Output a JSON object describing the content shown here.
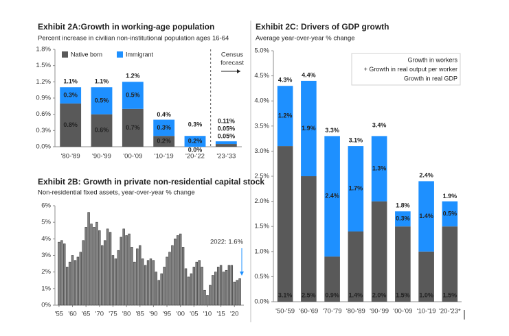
{
  "chart_data": [
    {
      "type": "bar",
      "title": "Exhibit 2A:Growth in working-age population",
      "subtitle": "Percent increase in civilian non-institutional population ages 16-64",
      "categories": [
        "'80-'89",
        "'90-'99",
        "'00-'09",
        "'10-'19",
        "'20-'22",
        "'23-'33"
      ],
      "series": [
        {
          "name": "Native born",
          "color": "#595959",
          "values": [
            0.8,
            0.6,
            0.7,
            0.2,
            0.0,
            0.05
          ],
          "value_labels": [
            "0.8%",
            "0.6%",
            "0.7%",
            "0.2%",
            "0.0%",
            "0.05%"
          ]
        },
        {
          "name": "Immigrant",
          "color": "#1e90ff",
          "values": [
            0.3,
            0.5,
            0.5,
            0.3,
            0.2,
            0.05
          ],
          "value_labels": [
            "0.3%",
            "0.5%",
            "0.5%",
            "0.3%",
            "0.2%",
            "0.05%"
          ]
        }
      ],
      "totals": {
        "color": "#ed7d31",
        "values": [
          1.1,
          1.1,
          1.2,
          0.4,
          0.3,
          0.11
        ],
        "value_labels": [
          "1.1%",
          "1.1%",
          "1.2%",
          "0.4%",
          "0.3%",
          "0.11%"
        ]
      },
      "annotation": [
        "Census",
        "forecast"
      ],
      "ylim": [
        0,
        1.8
      ],
      "yticks": [
        {
          "value": 0,
          "label": "0.0%"
        },
        {
          "value": 0.3,
          "label": "0.3%"
        },
        {
          "value": 0.6,
          "label": "0.6%"
        },
        {
          "value": 0.9,
          "label": "0.9%"
        },
        {
          "value": 1.2,
          "label": "1.2%"
        },
        {
          "value": 1.5,
          "label": "1.5%"
        },
        {
          "value": 1.8,
          "label": "1.8%"
        }
      ]
    },
    {
      "type": "bar",
      "title": "Exhibit 2B: Growth in private non-residential capital stock",
      "subtitle": "Non-residential fixed assets, year-over-year % change",
      "color": "#808080",
      "x": [
        1955,
        1956,
        1957,
        1958,
        1959,
        1960,
        1961,
        1962,
        1963,
        1964,
        1965,
        1966,
        1967,
        1968,
        1969,
        1970,
        1971,
        1972,
        1973,
        1974,
        1975,
        1976,
        1977,
        1978,
        1979,
        1980,
        1981,
        1982,
        1983,
        1984,
        1985,
        1986,
        1987,
        1988,
        1989,
        1990,
        1991,
        1992,
        1993,
        1994,
        1995,
        1996,
        1997,
        1998,
        1999,
        2000,
        2001,
        2002,
        2003,
        2004,
        2005,
        2006,
        2007,
        2008,
        2009,
        2010,
        2011,
        2012,
        2013,
        2014,
        2015,
        2016,
        2017,
        2018,
        2019,
        2020,
        2021,
        2022
      ],
      "values": [
        3.8,
        3.9,
        3.7,
        2.3,
        2.6,
        3.0,
        2.7,
        2.9,
        3.2,
        3.9,
        4.7,
        5.6,
        4.9,
        4.7,
        5.0,
        4.5,
        3.6,
        3.9,
        4.6,
        4.4,
        3.0,
        2.8,
        3.3,
        4.1,
        4.6,
        4.2,
        4.3,
        3.5,
        2.6,
        3.4,
        3.6,
        2.8,
        2.4,
        2.7,
        2.8,
        2.7,
        2.0,
        1.5,
        1.9,
        2.3,
        2.9,
        3.2,
        3.6,
        4.0,
        4.2,
        4.3,
        3.5,
        2.2,
        1.7,
        1.9,
        2.3,
        2.6,
        2.7,
        2.3,
        0.9,
        0.6,
        1.2,
        1.8,
        2.0,
        2.3,
        2.4,
        2.0,
        2.1,
        2.4,
        2.4,
        1.4,
        1.5,
        1.6
      ],
      "annotation": "2022: 1.6%",
      "annotation_color": "#1e90ff",
      "xlim": [
        1953.5,
        2023.5
      ],
      "xticks": [
        {
          "value": 1955,
          "label": "'55"
        },
        {
          "value": 1960,
          "label": "'60"
        },
        {
          "value": 1965,
          "label": "'65"
        },
        {
          "value": 1970,
          "label": "'70"
        },
        {
          "value": 1975,
          "label": "'75"
        },
        {
          "value": 1980,
          "label": "'80"
        },
        {
          "value": 1985,
          "label": "'85"
        },
        {
          "value": 1990,
          "label": "'90"
        },
        {
          "value": 1995,
          "label": "'95"
        },
        {
          "value": 2000,
          "label": "'00"
        },
        {
          "value": 2005,
          "label": "'05"
        },
        {
          "value": 2010,
          "label": "'10"
        },
        {
          "value": 2015,
          "label": "'15"
        },
        {
          "value": 2020,
          "label": "'20"
        }
      ],
      "ylim": [
        0,
        6
      ],
      "yticks": [
        {
          "value": 0,
          "label": "0%"
        },
        {
          "value": 1,
          "label": "1%"
        },
        {
          "value": 2,
          "label": "2%"
        },
        {
          "value": 3,
          "label": "3%"
        },
        {
          "value": 4,
          "label": "4%"
        },
        {
          "value": 5,
          "label": "5%"
        },
        {
          "value": 6,
          "label": "6%"
        }
      ]
    },
    {
      "type": "bar",
      "title": "Exhibit 2C: Drivers of GDP growth",
      "subtitle": "Average year-over-year % change",
      "categories": [
        "'50-'59",
        "'60-'69",
        "'70-'79",
        "'80-'89",
        "'90-'99",
        "'00-'09",
        "'10-'19",
        "'20-'23*"
      ],
      "series": [
        {
          "name": "+ Growth in real output per worker",
          "color": "#595959",
          "values": [
            3.1,
            2.5,
            0.9,
            1.4,
            2.0,
            1.5,
            1.0,
            1.5
          ],
          "value_labels": [
            "3.1%",
            "2.5%",
            "0.9%",
            "1.4%",
            "2.0%",
            "1.5%",
            "1.0%",
            "1.5%"
          ]
        },
        {
          "name": "Growth in workers",
          "color": "#1e90ff",
          "values": [
            1.2,
            1.9,
            2.4,
            1.7,
            1.3,
            0.3,
            1.4,
            0.5
          ],
          "value_labels": [
            "1.2%",
            "1.9%",
            "2.4%",
            "1.7%",
            "1.3%",
            "0.3%",
            "1.4%",
            "0.5%"
          ]
        }
      ],
      "totals": {
        "name": "Growth in real GDP",
        "color": "#ed7d31",
        "values": [
          4.3,
          4.4,
          3.3,
          3.1,
          3.4,
          1.8,
          2.4,
          1.9
        ],
        "value_labels": [
          "4.3%",
          "4.4%",
          "3.3%",
          "3.1%",
          "3.4%",
          "1.8%",
          "2.4%",
          "1.9%"
        ]
      },
      "ylim": [
        0,
        5
      ],
      "yticks": [
        {
          "value": 0,
          "label": "0.0%"
        },
        {
          "value": 0.5,
          "label": "0.5%"
        },
        {
          "value": 1,
          "label": "1.0%"
        },
        {
          "value": 1.5,
          "label": "1.5%"
        },
        {
          "value": 2,
          "label": "2.0%"
        },
        {
          "value": 2.5,
          "label": "2.5%"
        },
        {
          "value": 3,
          "label": "3.0%"
        },
        {
          "value": 3.5,
          "label": "3.5%"
        },
        {
          "value": 4,
          "label": "4.0%"
        },
        {
          "value": 4.5,
          "label": "4.5%"
        },
        {
          "value": 5,
          "label": "5.0%"
        }
      ]
    }
  ]
}
